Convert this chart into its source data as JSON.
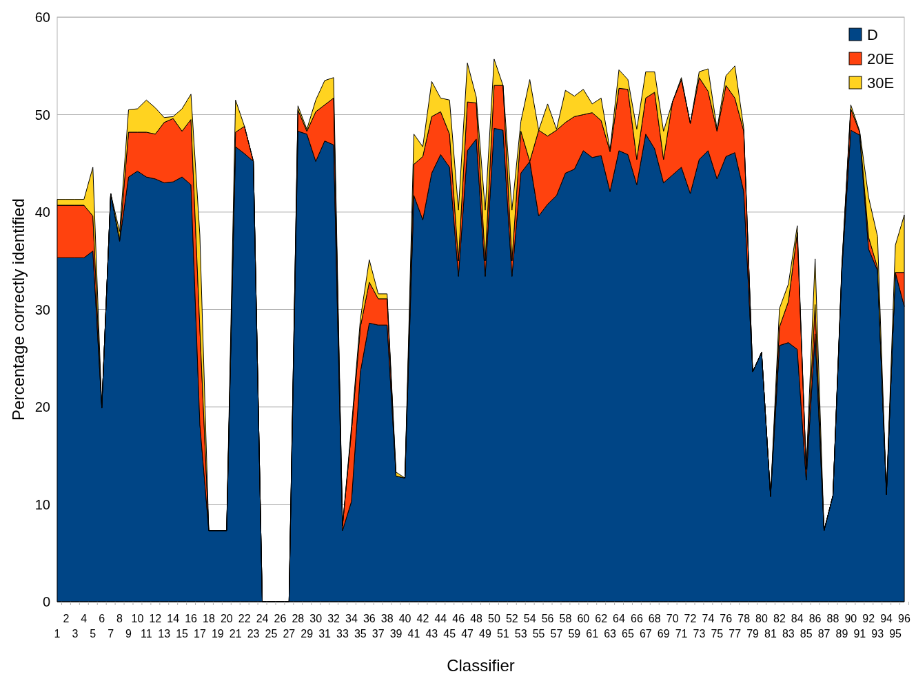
{
  "chart_data": {
    "type": "area",
    "stacked": true,
    "xlabel": "Classifier",
    "ylabel": "Percentage correctly identified",
    "categories": [
      "1",
      "2",
      "3",
      "4",
      "5",
      "6",
      "7",
      "8",
      "9",
      "10",
      "11",
      "12",
      "13",
      "14",
      "15",
      "16",
      "17",
      "18",
      "19",
      "20",
      "21",
      "22",
      "23",
      "24",
      "25",
      "26",
      "27",
      "28",
      "29",
      "30",
      "31",
      "32",
      "33",
      "34",
      "35",
      "36",
      "37",
      "38",
      "39",
      "40",
      "41",
      "42",
      "43",
      "44",
      "45",
      "46",
      "47",
      "48",
      "49",
      "50",
      "51",
      "52",
      "53",
      "54",
      "55",
      "56",
      "57",
      "58",
      "59",
      "60",
      "61",
      "62",
      "63",
      "64",
      "65",
      "66",
      "67",
      "68",
      "69",
      "70",
      "71",
      "72",
      "73",
      "74",
      "75",
      "76",
      "77",
      "78",
      "79",
      "80",
      "81",
      "82",
      "83",
      "84",
      "85",
      "86",
      "87",
      "88",
      "89",
      "90",
      "91",
      "92",
      "93",
      "94",
      "95",
      "96"
    ],
    "series": [
      {
        "name": "D",
        "color": "#004586",
        "values": [
          35.3,
          35.3,
          35.3,
          35.3,
          36.0,
          19.9,
          41.9,
          37.0,
          43.6,
          44.2,
          43.6,
          43.4,
          43.0,
          43.1,
          43.6,
          42.8,
          18.2,
          7.3,
          7.3,
          7.3,
          46.7,
          46.0,
          45.2,
          0,
          0,
          0,
          0,
          48.3,
          48.0,
          45.2,
          47.3,
          46.9,
          7.3,
          10.3,
          23.6,
          28.6,
          28.4,
          28.4,
          12.9,
          12.7,
          41.7,
          39.2,
          44.0,
          45.9,
          44.6,
          33.4,
          46.3,
          47.5,
          33.4,
          48.6,
          48.4,
          33.4,
          44.0,
          45.2,
          39.6,
          40.8,
          41.7,
          44.0,
          44.4,
          46.3,
          45.6,
          45.8,
          42.1,
          46.3,
          45.9,
          42.8,
          48.0,
          46.5,
          43.0,
          43.8,
          44.6,
          41.9,
          45.4,
          46.3,
          43.4,
          45.7,
          46.1,
          42.1,
          23.6,
          25.6,
          10.8,
          26.3,
          26.6,
          25.9,
          12.5,
          27.5,
          7.3,
          10.9,
          34.0,
          48.4,
          47.9,
          36.2,
          34.0,
          11.0,
          33.8,
          30.3
        ]
      },
      {
        "name": "20E",
        "color": "#ff420e",
        "values": [
          5.4,
          5.4,
          5.4,
          5.4,
          3.6,
          0,
          0,
          0.2,
          4.6,
          4.0,
          4.6,
          4.6,
          6.2,
          6.5,
          4.7,
          6.7,
          9.8,
          0,
          0,
          0,
          1.5,
          2.8,
          0,
          0,
          0,
          0,
          0,
          2.2,
          0.3,
          5.1,
          3.7,
          4.8,
          0.5,
          7.2,
          4.6,
          4.2,
          2.7,
          2.7,
          0,
          0,
          3.2,
          6.5,
          5.8,
          4.4,
          3.4,
          1.6,
          5.0,
          3.7,
          1.6,
          4.4,
          4.6,
          1.6,
          4.3,
          0,
          8.8,
          7.0,
          6.7,
          5.2,
          5.4,
          3.7,
          4.6,
          3.6,
          4.1,
          6.4,
          6.7,
          2.6,
          3.7,
          5.8,
          2.4,
          7.5,
          9.0,
          7.2,
          8.4,
          6.1,
          4.9,
          7.3,
          5.6,
          6.2,
          0,
          0,
          0,
          1.9,
          4.2,
          12.0,
          1.1,
          3.0,
          0,
          0,
          0.3,
          2.2,
          0.3,
          1.2,
          0.3,
          0,
          0,
          3.5
        ]
      },
      {
        "name": "30E",
        "color": "#ffd320",
        "values": [
          0.6,
          0.6,
          0.6,
          0.6,
          5.0,
          0,
          0,
          0.8,
          2.3,
          2.4,
          3.3,
          2.7,
          0.5,
          0.2,
          2.3,
          2.6,
          9.6,
          0,
          0,
          0,
          3.3,
          0,
          0,
          0,
          0,
          0,
          0,
          0.4,
          0.2,
          1.2,
          2.5,
          2.1,
          0,
          0.5,
          0.8,
          2.3,
          0.5,
          0.5,
          0.4,
          0,
          3.1,
          1.0,
          3.6,
          1.4,
          3.5,
          5.2,
          4.0,
          0.6,
          5.2,
          2.7,
          0,
          5.2,
          1.0,
          8.4,
          0,
          3.3,
          0.1,
          3.3,
          2.1,
          2.6,
          0.9,
          2.3,
          0.2,
          1.9,
          1.0,
          3.1,
          2.7,
          2.1,
          2.9,
          0,
          0.2,
          0,
          0.6,
          2.3,
          0.2,
          1.0,
          3.3,
          0.3,
          0,
          0,
          0,
          1.9,
          1.8,
          0.7,
          0,
          4.7,
          0,
          0,
          0.3,
          0.4,
          0.1,
          4.1,
          3.2,
          0,
          2.8,
          5.9
        ]
      }
    ],
    "ylim": [
      0,
      60
    ],
    "yticks": [
      0,
      10,
      20,
      30,
      40,
      50,
      60
    ],
    "grid": "y",
    "legend": "top right"
  }
}
